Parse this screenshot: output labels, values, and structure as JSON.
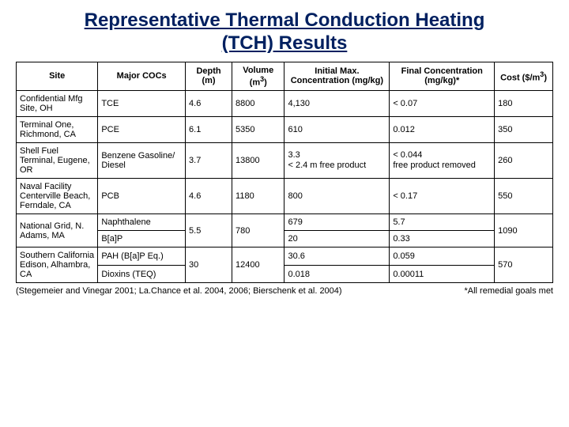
{
  "title": "Representative Thermal Conduction Heating (TCH) Results",
  "headers": {
    "site": "Site",
    "coc": "Major COCs",
    "depth": "Depth (m)",
    "volume_prefix": "Volume (m",
    "volume_suffix": ")",
    "initial": "Initial Max. Concentration (mg/kg)",
    "final": "Final Concentration (mg/kg)*",
    "cost_prefix": "Cost ($/m",
    "cost_suffix": ")"
  },
  "rows": {
    "r1": {
      "site": "Confidential Mfg Site, OH",
      "coc": "TCE",
      "depth": "4.6",
      "volume": "8800",
      "initial": "4,130",
      "final": "< 0.07",
      "cost": "180"
    },
    "r2": {
      "site": "Terminal One, Richmond, CA",
      "coc": "PCE",
      "depth": "6.1",
      "volume": "5350",
      "initial": "610",
      "final": "0.012",
      "cost": "350"
    },
    "r3": {
      "site": "Shell Fuel Terminal, Eugene, OR",
      "coc": "Benzene Gasoline/ Diesel",
      "depth": "3.7",
      "volume": "13800",
      "initial_a": "3.3",
      "initial_b": "< 2.4 m free product",
      "final_a": "< 0.044",
      "final_b": "free product removed",
      "cost": "260"
    },
    "r4": {
      "site": "Naval Facility Centerville Beach, Ferndale, CA",
      "coc": "PCB",
      "depth": "4.6",
      "volume": "1180",
      "initial": "800",
      "final": "< 0.17",
      "cost": "550"
    },
    "r5": {
      "site": "National Grid, N. Adams, MA",
      "coc_a": "Naphthalene",
      "coc_b": "B[a]P",
      "depth": "5.5",
      "volume": "780",
      "initial_a": "679",
      "initial_b": "20",
      "final_a": "5.7",
      "final_b": "0.33",
      "cost": "1090"
    },
    "r6": {
      "site": "Southern California Edison, Alhambra, CA",
      "coc_a": "PAH (B[a]P Eq.)",
      "coc_b": "Dioxins (TEQ)",
      "depth": "30",
      "volume": "12400",
      "initial_a": "30.6",
      "initial_b": "0.018",
      "final_a": "0.059",
      "final_b": "0.00011",
      "cost": "570"
    }
  },
  "footer": {
    "citation": "(Stegemeier and Vinegar 2001; La.Chance et al. 2004, 2006; Bierschenk et al. 2004)",
    "note": "*All remedial goals met"
  },
  "sup3": "3"
}
